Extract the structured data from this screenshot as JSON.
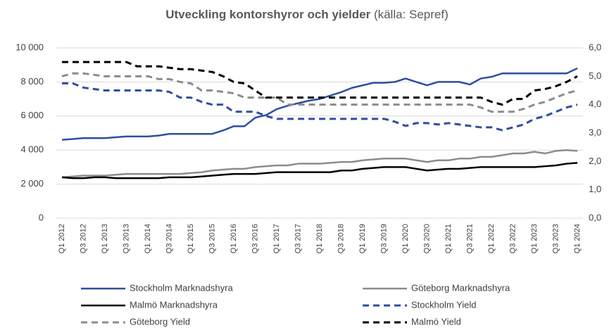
{
  "chart_data": {
    "type": "line",
    "title": "Utveckling kontorshyror och yielder",
    "subtitle": "(källa: Sepref)",
    "categories": [
      "Q1 2012",
      null,
      "Q3 2012",
      null,
      "Q1 2013",
      null,
      "Q3 2013",
      null,
      "Q1 2014",
      null,
      "Q3 2014",
      null,
      "Q1 2015",
      null,
      "Q3 2015",
      null,
      "Q1 2016",
      null,
      "Q3 2016",
      null,
      "Q1 2017",
      null,
      "Q3 2017",
      null,
      "Q1 2018",
      null,
      "Q3 2018",
      null,
      "Q1 2019",
      null,
      "Q3 2019",
      null,
      "Q1 2020",
      null,
      "Q3 2020",
      null,
      "Q1 2021",
      null,
      "Q3 2021",
      null,
      "Q1 2022",
      null,
      "Q3 2022",
      null,
      "Q1 2023",
      null,
      "Q3 2023",
      null,
      "Q1 2024"
    ],
    "ylim": [
      0,
      10000
    ],
    "yticks": [
      0,
      {
        "value": 2000,
        "label": "2 000"
      },
      {
        "value": 4000,
        "label": "4 000"
      },
      {
        "value": 6000,
        "label": "6 000"
      },
      {
        "value": 8000,
        "label": "8 000"
      },
      {
        "value": 10000,
        "label": "10 000"
      }
    ],
    "y2lim": [
      0,
      6
    ],
    "y2ticks": [
      {
        "value": 0,
        "label": "0,0"
      },
      {
        "value": 1,
        "label": "1,0"
      },
      {
        "value": 2,
        "label": "2,0"
      },
      {
        "value": 3,
        "label": "3,0"
      },
      {
        "value": 4,
        "label": "4,0"
      },
      {
        "value": 5,
        "label": "5,0"
      },
      {
        "value": 6,
        "label": "6,0"
      }
    ],
    "grid": true,
    "legend": "bottom",
    "series": [
      {
        "name": "Stockholm Marknadshyra",
        "color": "#2f4ea0",
        "dashed": false,
        "values": [
          4600,
          4650,
          4700,
          4700,
          4700,
          4750,
          4800,
          4800,
          4800,
          4850,
          4950,
          4950,
          4950,
          4950,
          4950,
          5150,
          5400,
          5400,
          5900,
          6050,
          6400,
          6600,
          6750,
          6900,
          7000,
          7200,
          7400,
          7650,
          7800,
          7950,
          7950,
          8000,
          8200,
          8000,
          7800,
          8000,
          8000,
          8000,
          7850,
          8200,
          8300,
          8500,
          8500,
          8500,
          8500,
          8500,
          8500,
          8500,
          8800
        ]
      },
      {
        "name": "Göteborg Marknadshyra",
        "color": "#8c8c8c",
        "dashed": false,
        "values": [
          2400,
          2450,
          2500,
          2500,
          2500,
          2550,
          2600,
          2600,
          2600,
          2600,
          2600,
          2600,
          2650,
          2700,
          2800,
          2850,
          2900,
          2900,
          3000,
          3050,
          3100,
          3100,
          3200,
          3200,
          3200,
          3250,
          3300,
          3300,
          3400,
          3450,
          3500,
          3500,
          3500,
          3400,
          3300,
          3400,
          3400,
          3500,
          3500,
          3600,
          3600,
          3700,
          3800,
          3800,
          3900,
          3800,
          3950,
          4000,
          3950
        ]
      },
      {
        "name": "Malmö Marknadshyra",
        "color": "#000000",
        "dashed": false,
        "values": [
          2400,
          2350,
          2350,
          2400,
          2400,
          2350,
          2350,
          2350,
          2350,
          2350,
          2400,
          2400,
          2400,
          2450,
          2500,
          2550,
          2600,
          2600,
          2600,
          2650,
          2700,
          2700,
          2700,
          2700,
          2700,
          2700,
          2800,
          2800,
          2900,
          2950,
          3000,
          3000,
          3000,
          2900,
          2800,
          2850,
          2900,
          2900,
          2950,
          3000,
          3000,
          3000,
          3000,
          3000,
          3000,
          3050,
          3100,
          3200,
          3250
        ]
      },
      {
        "name": "Stockholm Yield",
        "color": "#2f4ea0",
        "dashed": true,
        "axis": "y2",
        "values": [
          4.75,
          4.75,
          4.6,
          4.55,
          4.5,
          4.5,
          4.5,
          4.5,
          4.5,
          4.5,
          4.45,
          4.25,
          4.25,
          4.1,
          4.0,
          4.0,
          3.75,
          3.75,
          3.75,
          3.6,
          3.5,
          3.5,
          3.5,
          3.5,
          3.5,
          3.5,
          3.5,
          3.5,
          3.5,
          3.5,
          3.5,
          3.4,
          3.25,
          3.35,
          3.35,
          3.3,
          3.35,
          3.3,
          3.25,
          3.2,
          3.2,
          3.1,
          3.2,
          3.3,
          3.5,
          3.6,
          3.75,
          3.9,
          4.0
        ]
      },
      {
        "name": "Göteborg Yield",
        "color": "#8c8c8c",
        "dashed": true,
        "axis": "y2",
        "values": [
          5.0,
          5.1,
          5.1,
          5.05,
          5.0,
          5.0,
          5.0,
          5.0,
          5.0,
          4.9,
          4.9,
          4.8,
          4.75,
          4.5,
          4.5,
          4.45,
          4.4,
          4.25,
          4.25,
          4.25,
          4.25,
          4.0,
          4.0,
          4.0,
          4.0,
          4.0,
          4.0,
          4.0,
          4.0,
          4.0,
          4.0,
          4.0,
          4.0,
          4.0,
          4.0,
          4.0,
          4.0,
          4.0,
          4.0,
          3.9,
          3.75,
          3.75,
          3.75,
          3.85,
          4.0,
          4.1,
          4.25,
          4.4,
          4.5
        ]
      },
      {
        "name": "Malmö Yield",
        "color": "#000000",
        "dashed": true,
        "axis": "y2",
        "values": [
          5.5,
          5.5,
          5.5,
          5.5,
          5.5,
          5.5,
          5.5,
          5.35,
          5.35,
          5.35,
          5.3,
          5.25,
          5.25,
          5.2,
          5.15,
          5.0,
          4.8,
          4.75,
          4.5,
          4.25,
          4.25,
          4.25,
          4.25,
          4.25,
          4.25,
          4.25,
          4.25,
          4.25,
          4.25,
          4.25,
          4.25,
          4.25,
          4.25,
          4.25,
          4.25,
          4.25,
          4.25,
          4.25,
          4.25,
          4.25,
          4.1,
          4.0,
          4.2,
          4.2,
          4.5,
          4.55,
          4.65,
          4.8,
          5.0
        ]
      }
    ]
  }
}
